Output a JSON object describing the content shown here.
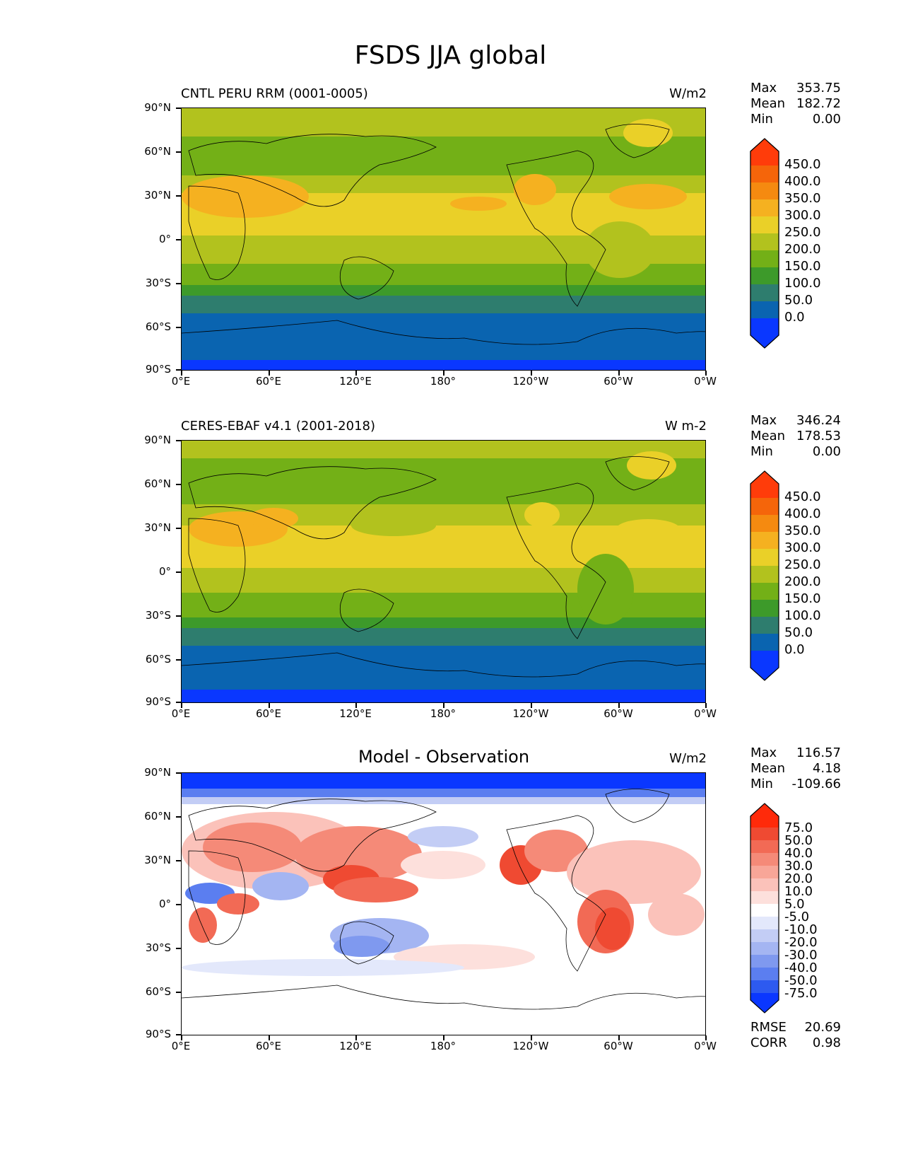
{
  "title": "FSDS JJA global",
  "colors": {
    "abs_levels": [
      "#0a37ff",
      "#0a64b0",
      "#2e7d6e",
      "#3d9a2a",
      "#73b017",
      "#b2c21e",
      "#ead028",
      "#f5b120",
      "#f58a10",
      "#f5650a",
      "#ff3c0a"
    ],
    "diff_levels": [
      "#0a37ff",
      "#2d5af0",
      "#5b7ef0",
      "#7f99ef",
      "#a4b5f2",
      "#c3cdf5",
      "#e3e8fb",
      "#ffffff",
      "#fde0dc",
      "#fbc2ba",
      "#f8a698",
      "#f58a78",
      "#f26a55",
      "#ef4a32",
      "#ff2a0a"
    ]
  },
  "axes": {
    "lat_labels": [
      "90°N",
      "60°N",
      "30°N",
      "0°",
      "30°S",
      "60°S",
      "90°S"
    ],
    "lon_labels": [
      "0°E",
      "60°E",
      "120°E",
      "180°",
      "120°W",
      "60°W",
      "0°W"
    ]
  },
  "panels": [
    {
      "title": "CNTL PERU RRM (0001-0005)",
      "units": "W/m2",
      "stats": {
        "max_label": "Max",
        "max": "353.75",
        "mean_label": "Mean",
        "mean": "182.72",
        "min_label": "Min",
        "min": "0.00"
      },
      "colorbar_labels": [
        "450.0",
        "400.0",
        "350.0",
        "300.0",
        "250.0",
        "200.0",
        "150.0",
        "100.0",
        "50.0",
        "0.0"
      ]
    },
    {
      "title": "CERES-EBAF v4.1 (2001-2018)",
      "units": "W m-2",
      "stats": {
        "max_label": "Max",
        "max": "346.24",
        "mean_label": "Mean",
        "mean": "178.53",
        "min_label": "Min",
        "min": "0.00"
      },
      "colorbar_labels": [
        "450.0",
        "400.0",
        "350.0",
        "300.0",
        "250.0",
        "200.0",
        "150.0",
        "100.0",
        "50.0",
        "0.0"
      ]
    },
    {
      "title": "Model - Observation",
      "units": "W/m2",
      "stats": {
        "max_label": "Max",
        "max": "116.57",
        "mean_label": "Mean",
        "mean": "4.18",
        "min_label": "Min",
        "min": "-109.66"
      },
      "colorbar_labels": [
        "75.0",
        "50.0",
        "40.0",
        "30.0",
        "20.0",
        "10.0",
        "5.0",
        "-5.0",
        "-10.0",
        "-20.0",
        "-30.0",
        "-40.0",
        "-50.0",
        "-75.0"
      ],
      "metrics": {
        "rmse_label": "RMSE",
        "rmse": "20.69",
        "corr_label": "CORR",
        "corr": "0.98"
      }
    }
  ]
}
